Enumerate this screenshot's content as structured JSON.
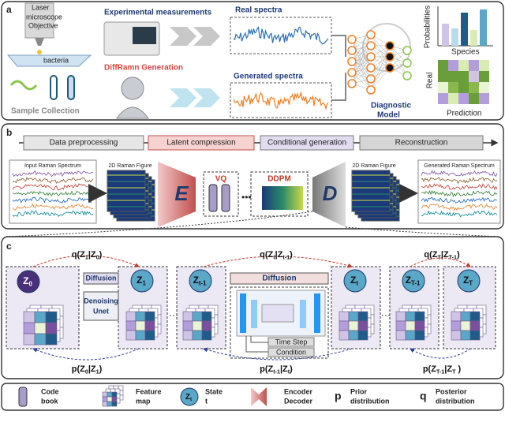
{
  "panel_a": {
    "label": "a",
    "microscope": {
      "laser": "Laser",
      "microscope": "microscope",
      "objective": "Objective",
      "bacteria": "bacteria"
    },
    "sample_collection": "Sample Collection",
    "experimental": "Experimental measurements",
    "generation": "DiffRamn Generation",
    "real_spectra": "Real spectra",
    "generated_spectra": "Generated spectra",
    "model": [
      "Diagnostic",
      "Model"
    ],
    "probabilities": "Probabilities",
    "species": "Species",
    "real": "Real",
    "prediction": "Prediction"
  },
  "panel_b": {
    "label": "b",
    "stages": [
      "Data preprocessing",
      "Latent compression",
      "Conditional generation",
      "Reconstruction"
    ],
    "input": "Input Raman Spectrum",
    "figure_in": "2D Raman Figure",
    "encoder": "E",
    "vq": "VQ",
    "ddpm": "DDPM",
    "decoder": "D",
    "figure_out": "2D Raman Figure",
    "output": "Generated Raman Spectrum"
  },
  "panel_c": {
    "label": "c",
    "states": [
      [
        "Z",
        "0"
      ],
      [
        "Z",
        "1"
      ],
      [
        "Z",
        "t-1"
      ],
      [
        "Z",
        "t"
      ],
      [
        "Z",
        "T-1"
      ],
      [
        "Z",
        "T"
      ]
    ],
    "q": [
      [
        "q(Z",
        "1",
        "|Z",
        "0",
        ")"
      ],
      [
        "q(Z",
        "t",
        "|Z",
        "t-1",
        ")"
      ],
      [
        "q(Z",
        "T",
        "|Z",
        "T-1",
        ")"
      ]
    ],
    "p": [
      [
        "p(Z",
        "0",
        "|Z",
        "1",
        ")"
      ],
      [
        "p(Z",
        "t-1",
        "|Z",
        "t",
        ")"
      ],
      [
        "p(Z",
        "T-1",
        "|Z",
        "T",
        " )"
      ]
    ],
    "diffusion_1": "Diffusion",
    "denoising": [
      "Denoising",
      "Unet"
    ],
    "diffusion_2": "Diffusion",
    "time_step": "Time Step",
    "condition": "Condition"
  },
  "legend": {
    "codebook": [
      "Code",
      "book"
    ],
    "feature_map": [
      "Feature",
      "map"
    ],
    "state_symbol": [
      "Z",
      "t"
    ],
    "state": [
      "State",
      "t"
    ],
    "encdec": [
      "Encoder",
      "Decoder"
    ],
    "p_symbol": "p",
    "prior": [
      "Prior",
      "distribution"
    ],
    "q_symbol": "q",
    "posterior": [
      "Posterior",
      "distribution"
    ]
  }
}
